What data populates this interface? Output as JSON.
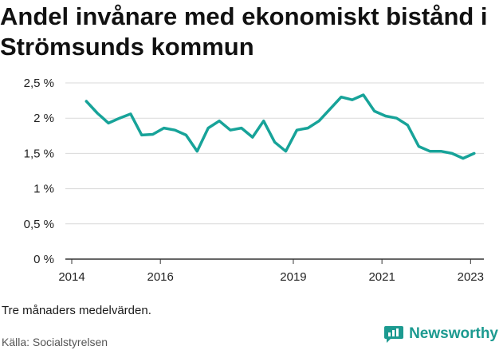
{
  "title": "Andel invånare med ekonomiskt bistånd i Strömsunds kommun",
  "note": "Tre månaders medelvärden.",
  "source": "Källa: Socialstyrelsen",
  "brand": {
    "name": "Newsworthy",
    "icon": "newsworthy-logo-icon",
    "color": "#1c9a90"
  },
  "colors": {
    "line": "#17a399",
    "grid": "#d9d9d9",
    "axis": "#333333"
  },
  "chart_data": {
    "type": "line",
    "title": "Andel invånare med ekonomiskt bistånd i Strömsunds kommun",
    "xlabel": "",
    "ylabel": "",
    "x_ticks": [
      2014,
      2016,
      2019,
      2021,
      2023
    ],
    "y_ticks": [
      "0 %",
      "0,5 %",
      "1 %",
      "1,5 %",
      "2 %",
      "2,5 %"
    ],
    "y_tick_values": [
      0,
      0.5,
      1,
      1.5,
      2,
      2.5
    ],
    "xlim": [
      2014,
      2023.3
    ],
    "ylim": [
      0,
      2.5
    ],
    "grid": true,
    "legend": "none",
    "series": [
      {
        "x": [
          2014.33,
          2014.58,
          2014.83,
          2015.08,
          2015.33,
          2015.58,
          2015.83,
          2016.08,
          2016.33,
          2016.58,
          2016.83,
          2017.08,
          2017.33,
          2017.58,
          2017.83,
          2018.08,
          2018.33,
          2018.58,
          2018.83,
          2019.08,
          2019.33,
          2019.58,
          2019.83,
          2020.08,
          2020.33,
          2020.58,
          2020.83,
          2021.08,
          2021.33,
          2021.58,
          2021.83,
          2022.08,
          2022.33,
          2022.58,
          2022.83,
          2023.08
        ],
        "values": [
          2.24,
          2.07,
          1.93,
          2.0,
          2.06,
          1.76,
          1.77,
          1.86,
          1.83,
          1.76,
          1.53,
          1.86,
          1.96,
          1.83,
          1.86,
          1.73,
          1.96,
          1.66,
          1.53,
          1.83,
          1.86,
          1.96,
          2.13,
          2.3,
          2.26,
          2.33,
          2.1,
          2.03,
          2.0,
          1.9,
          1.6,
          1.53,
          1.53,
          1.5,
          1.43,
          1.5
        ]
      }
    ]
  }
}
